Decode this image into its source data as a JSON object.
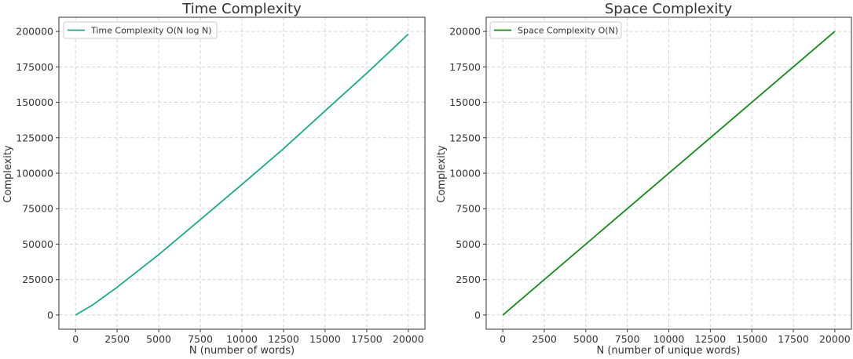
{
  "chart_data": [
    {
      "type": "line",
      "title": "Time Complexity",
      "xlabel": "N (number of words)",
      "ylabel": "Complexity",
      "xlim": [
        -1000,
        21000
      ],
      "ylim": [
        -10000,
        210000
      ],
      "xticks": [
        0,
        2500,
        5000,
        7500,
        10000,
        12500,
        15000,
        17500,
        20000
      ],
      "yticks": [
        0,
        25000,
        50000,
        75000,
        100000,
        125000,
        150000,
        175000,
        200000
      ],
      "grid": true,
      "legend_position": "top-left",
      "series": [
        {
          "name": "Time Complexity O(N log N)",
          "color": "#1aaa8a",
          "x": [
            1,
            1000,
            2500,
            5000,
            7500,
            10000,
            12500,
            15000,
            17500,
            20000
          ],
          "y": [
            0,
            6900,
            19600,
            42600,
            67300,
            92100,
            117300,
            144000,
            170500,
            198100
          ]
        }
      ]
    },
    {
      "type": "line",
      "title": "Space Complexity",
      "xlabel": "N (number of unique words)",
      "ylabel": "Complexity",
      "xlim": [
        -1000,
        21000
      ],
      "ylim": [
        -1000,
        21000
      ],
      "xticks": [
        0,
        2500,
        5000,
        7500,
        10000,
        12500,
        15000,
        17500,
        20000
      ],
      "yticks": [
        0,
        2500,
        5000,
        7500,
        10000,
        12500,
        15000,
        17500,
        20000
      ],
      "grid": true,
      "legend_position": "top-left",
      "series": [
        {
          "name": "Space Complexity O(N)",
          "color": "#138a13",
          "x": [
            0,
            20000
          ],
          "y": [
            0,
            20000
          ]
        }
      ]
    }
  ]
}
